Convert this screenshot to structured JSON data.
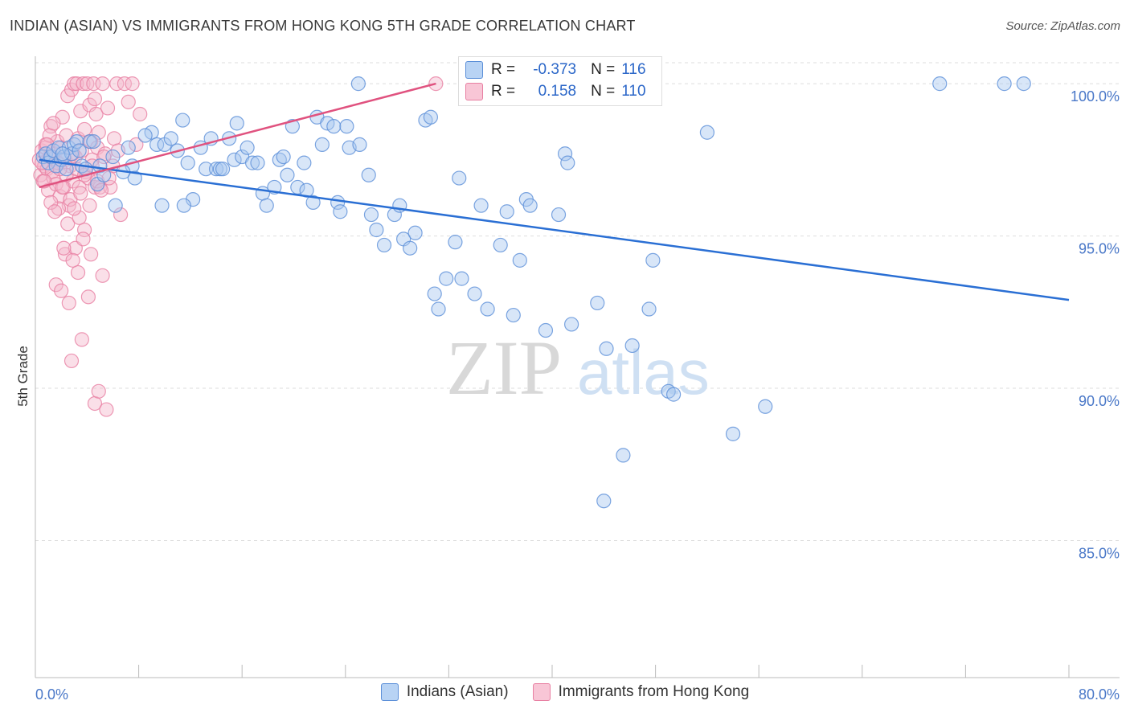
{
  "header": {
    "title": "INDIAN (ASIAN) VS IMMIGRANTS FROM HONG KONG 5TH GRADE CORRELATION CHART",
    "source": "Source: ZipAtlas.com"
  },
  "watermark": {
    "zip": "ZIP",
    "atlas": "atlas"
  },
  "colors": {
    "blue_fill": "#a8c8f0",
    "blue_stroke": "#5b8fd8",
    "blue_line": "#2a6fd4",
    "pink_fill": "#f5b8cc",
    "pink_stroke": "#e87fa2",
    "pink_line": "#e0527f",
    "grid": "#dddddd",
    "axis_text": "#4a78c8"
  },
  "legend": {
    "rows": [
      {
        "r_label": "R =",
        "r_value": "-0.373",
        "n_label": "N =",
        "n_value": "116"
      },
      {
        "r_label": "R =",
        "r_value": "0.158",
        "n_label": "N =",
        "n_value": "110"
      }
    ]
  },
  "bottom_legend": {
    "items": [
      {
        "label": "Indians (Asian)"
      },
      {
        "label": "Immigrants from Hong Kong"
      }
    ]
  },
  "chart_data": {
    "type": "scatter",
    "title": "INDIAN (ASIAN) VS IMMIGRANTS FROM HONG KONG 5TH GRADE CORRELATION CHART",
    "xlabel": "",
    "ylabel": "5th Grade",
    "xlim": [
      0,
      80
    ],
    "ylim": [
      80.5,
      100.9
    ],
    "x_tick_labels": [
      "0.0%",
      "80.0%"
    ],
    "y_ticks": [
      85,
      90,
      95,
      100
    ],
    "y_tick_labels": [
      "85.0%",
      "90.0%",
      "95.0%",
      "100.0%"
    ],
    "grid": true,
    "legend_position": "top-center",
    "series": [
      {
        "name": "Indians (Asian)",
        "r": -0.373,
        "n": 116,
        "trend": {
          "x": [
            0.3,
            80
          ],
          "y": [
            97.5,
            92.9
          ]
        },
        "points": [
          [
            0.6,
            97.6
          ],
          [
            0.8,
            97.7
          ],
          [
            1.0,
            97.4
          ],
          [
            1.2,
            97.6
          ],
          [
            1.4,
            97.8
          ],
          [
            1.6,
            97.3
          ],
          [
            1.8,
            97.9
          ],
          [
            2.0,
            97.5
          ],
          [
            2.2,
            97.6
          ],
          [
            2.4,
            97.2
          ],
          [
            2.6,
            97.9
          ],
          [
            2.8,
            97.7
          ],
          [
            3.0,
            98.0
          ],
          [
            3.2,
            98.1
          ],
          [
            3.4,
            97.8
          ],
          [
            3.6,
            97.3
          ],
          [
            3.9,
            97.2
          ],
          [
            4.2,
            98.1
          ],
          [
            4.5,
            98.1
          ],
          [
            4.8,
            96.7
          ],
          [
            5.0,
            97.3
          ],
          [
            5.3,
            97.0
          ],
          [
            6.0,
            97.6
          ],
          [
            6.2,
            96.0
          ],
          [
            7.2,
            97.9
          ],
          [
            7.5,
            97.3
          ],
          [
            7.7,
            96.9
          ],
          [
            9.0,
            98.4
          ],
          [
            9.4,
            98.0
          ],
          [
            9.8,
            96.0
          ],
          [
            10.0,
            98.0
          ],
          [
            10.5,
            98.2
          ],
          [
            11.0,
            97.8
          ],
          [
            11.4,
            98.8
          ],
          [
            11.8,
            97.4
          ],
          [
            12.2,
            96.2
          ],
          [
            12.8,
            97.9
          ],
          [
            13.2,
            97.2
          ],
          [
            13.6,
            98.2
          ],
          [
            14.0,
            97.2
          ],
          [
            14.3,
            97.2
          ],
          [
            15.0,
            98.2
          ],
          [
            15.4,
            97.5
          ],
          [
            15.6,
            98.7
          ],
          [
            16.0,
            97.6
          ],
          [
            16.4,
            97.9
          ],
          [
            16.8,
            97.4
          ],
          [
            17.2,
            97.4
          ],
          [
            17.6,
            96.4
          ],
          [
            17.9,
            96.0
          ],
          [
            18.5,
            96.6
          ],
          [
            18.9,
            97.5
          ],
          [
            19.2,
            97.6
          ],
          [
            19.5,
            97.0
          ],
          [
            19.9,
            98.6
          ],
          [
            20.3,
            96.6
          ],
          [
            21.0,
            96.5
          ],
          [
            21.5,
            96.1
          ],
          [
            21.8,
            98.9
          ],
          [
            22.2,
            98.0
          ],
          [
            22.6,
            98.7
          ],
          [
            23.1,
            98.6
          ],
          [
            23.4,
            96.1
          ],
          [
            23.6,
            95.8
          ],
          [
            24.1,
            98.6
          ],
          [
            24.3,
            97.9
          ],
          [
            25.1,
            98.0
          ],
          [
            25.0,
            100.0
          ],
          [
            26.0,
            95.7
          ],
          [
            26.4,
            95.2
          ],
          [
            27.0,
            94.7
          ],
          [
            27.8,
            95.7
          ],
          [
            28.2,
            96.0
          ],
          [
            28.5,
            94.9
          ],
          [
            29.0,
            94.6
          ],
          [
            29.4,
            95.1
          ],
          [
            30.2,
            98.8
          ],
          [
            30.6,
            98.9
          ],
          [
            31.2,
            92.6
          ],
          [
            31.8,
            93.6
          ],
          [
            32.5,
            94.8
          ],
          [
            32.8,
            96.9
          ],
          [
            33.0,
            93.6
          ],
          [
            34.0,
            93.1
          ],
          [
            34.5,
            96.0
          ],
          [
            35.0,
            92.6
          ],
          [
            36.0,
            94.7
          ],
          [
            36.5,
            95.8
          ],
          [
            37.0,
            92.4
          ],
          [
            37.5,
            94.2
          ],
          [
            38.0,
            96.2
          ],
          [
            38.3,
            96.0
          ],
          [
            39.5,
            91.9
          ],
          [
            40.5,
            95.7
          ],
          [
            41.0,
            97.7
          ],
          [
            41.2,
            97.4
          ],
          [
            41.5,
            92.1
          ],
          [
            43.5,
            92.8
          ],
          [
            44.0,
            86.3
          ],
          [
            44.2,
            91.3
          ],
          [
            45.5,
            87.8
          ],
          [
            46.2,
            91.4
          ],
          [
            47.5,
            92.6
          ],
          [
            47.8,
            94.2
          ],
          [
            49.0,
            89.9
          ],
          [
            49.4,
            89.8
          ],
          [
            52.0,
            98.4
          ],
          [
            54.0,
            88.5
          ],
          [
            56.5,
            89.4
          ],
          [
            70.0,
            100.0
          ],
          [
            75.0,
            100.0
          ],
          [
            76.5,
            100.0
          ],
          [
            11.5,
            96.0
          ],
          [
            14.5,
            97.2
          ],
          [
            6.8,
            97.1
          ],
          [
            2.1,
            97.7
          ],
          [
            8.5,
            98.3
          ],
          [
            25.8,
            97.0
          ],
          [
            30.9,
            93.1
          ],
          [
            20.8,
            97.4
          ]
        ]
      },
      {
        "name": "Immigrants from Hong Kong",
        "r": 0.158,
        "n": 110,
        "trend": {
          "x": [
            0.3,
            31
          ],
          "y": [
            96.6,
            100.0
          ]
        },
        "points": [
          [
            0.3,
            97.5
          ],
          [
            0.4,
            97.0
          ],
          [
            0.5,
            97.8
          ],
          [
            0.6,
            96.8
          ],
          [
            0.7,
            97.3
          ],
          [
            0.8,
            98.0
          ],
          [
            0.9,
            97.2
          ],
          [
            1.0,
            96.5
          ],
          [
            1.1,
            97.6
          ],
          [
            1.2,
            98.6
          ],
          [
            1.3,
            97.1
          ],
          [
            1.4,
            96.9
          ],
          [
            1.5,
            97.7
          ],
          [
            1.6,
            96.7
          ],
          [
            1.7,
            98.1
          ],
          [
            1.8,
            97.4
          ],
          [
            1.9,
            96.3
          ],
          [
            2.0,
            97.9
          ],
          [
            2.1,
            98.9
          ],
          [
            2.2,
            96.6
          ],
          [
            2.3,
            97.5
          ],
          [
            2.4,
            98.3
          ],
          [
            2.5,
            99.6
          ],
          [
            2.6,
            96.0
          ],
          [
            2.7,
            97.3
          ],
          [
            2.8,
            99.8
          ],
          [
            2.9,
            96.8
          ],
          [
            3.0,
            100.0
          ],
          [
            3.1,
            97.6
          ],
          [
            3.2,
            100.0
          ],
          [
            3.3,
            98.2
          ],
          [
            3.4,
            96.6
          ],
          [
            3.5,
            99.1
          ],
          [
            3.6,
            97.8
          ],
          [
            3.7,
            100.0
          ],
          [
            3.8,
            98.5
          ],
          [
            3.9,
            97.1
          ],
          [
            4.0,
            100.0
          ],
          [
            4.1,
            96.9
          ],
          [
            4.2,
            99.3
          ],
          [
            4.3,
            98.1
          ],
          [
            4.4,
            97.5
          ],
          [
            4.5,
            100.0
          ],
          [
            4.6,
            96.6
          ],
          [
            4.7,
            99.0
          ],
          [
            4.8,
            97.9
          ],
          [
            4.9,
            98.4
          ],
          [
            5.0,
            96.6
          ],
          [
            5.2,
            100.0
          ],
          [
            5.4,
            97.7
          ],
          [
            5.6,
            99.2
          ],
          [
            5.8,
            96.6
          ],
          [
            6.0,
            97.3
          ],
          [
            6.3,
            100.0
          ],
          [
            6.6,
            95.7
          ],
          [
            6.9,
            100.0
          ],
          [
            7.2,
            99.4
          ],
          [
            7.5,
            100.0
          ],
          [
            7.8,
            98.0
          ],
          [
            8.1,
            99.0
          ],
          [
            1.6,
            93.4
          ],
          [
            2.0,
            93.2
          ],
          [
            2.3,
            94.4
          ],
          [
            2.6,
            92.8
          ],
          [
            2.8,
            90.9
          ],
          [
            3.1,
            94.6
          ],
          [
            3.3,
            93.8
          ],
          [
            3.6,
            91.6
          ],
          [
            3.8,
            95.2
          ],
          [
            4.1,
            93.0
          ],
          [
            4.3,
            94.4
          ],
          [
            4.6,
            89.5
          ],
          [
            4.9,
            89.9
          ],
          [
            5.2,
            93.7
          ],
          [
            5.5,
            89.3
          ],
          [
            1.8,
            95.9
          ],
          [
            2.2,
            94.6
          ],
          [
            2.5,
            95.4
          ],
          [
            2.9,
            94.2
          ],
          [
            3.4,
            95.6
          ],
          [
            3.7,
            94.9
          ],
          [
            1.2,
            96.1
          ],
          [
            1.5,
            95.8
          ],
          [
            2.7,
            96.2
          ],
          [
            3.0,
            95.9
          ],
          [
            3.5,
            96.4
          ],
          [
            4.2,
            96.0
          ],
          [
            4.8,
            96.8
          ],
          [
            5.1,
            96.5
          ],
          [
            5.7,
            96.9
          ],
          [
            0.8,
            97.9
          ],
          [
            1.1,
            98.3
          ],
          [
            1.4,
            98.7
          ],
          [
            1.7,
            97.4
          ],
          [
            2.4,
            97.0
          ],
          [
            2.9,
            97.7
          ],
          [
            3.2,
            97.2
          ],
          [
            3.8,
            97.0
          ],
          [
            4.4,
            97.3
          ],
          [
            5.3,
            97.6
          ],
          [
            6.1,
            98.2
          ],
          [
            6.4,
            97.8
          ],
          [
            0.5,
            97.4
          ],
          [
            0.7,
            96.8
          ],
          [
            0.9,
            98.0
          ],
          [
            1.3,
            97.6
          ],
          [
            1.9,
            97.2
          ],
          [
            2.1,
            96.6
          ],
          [
            31.0,
            100.0
          ],
          [
            4.6,
            99.5
          ]
        ]
      }
    ]
  },
  "axes": {
    "ylabel": "5th Grade",
    "x_left": "0.0%",
    "x_right": "80.0%"
  }
}
